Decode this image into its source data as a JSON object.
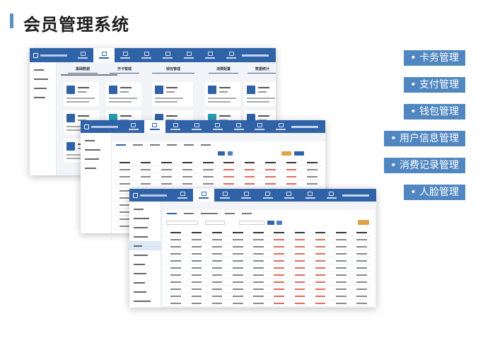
{
  "page": {
    "title": "会员管理系统",
    "accent": "#5087c1",
    "app_header_color": "#2f62a6"
  },
  "features": [
    {
      "label": "• 卡务管理"
    },
    {
      "label": "• 支付管理"
    },
    {
      "label": "• 钱包管理"
    },
    {
      "label": "• 用户信息管理"
    },
    {
      "label": "• 消费记录管理"
    },
    {
      "label": "• 人脸管理"
    }
  ],
  "screen1": {
    "sections": [
      "基础数据",
      "开卡管理",
      "钱包管理",
      "消费配置",
      "数据统计"
    ],
    "nav_active_index": 1
  },
  "screen2": {
    "nav_active_index": 1
  },
  "screen3": {
    "nav_active_index": 1,
    "red_amount_columns": [
      5,
      6,
      7
    ]
  }
}
